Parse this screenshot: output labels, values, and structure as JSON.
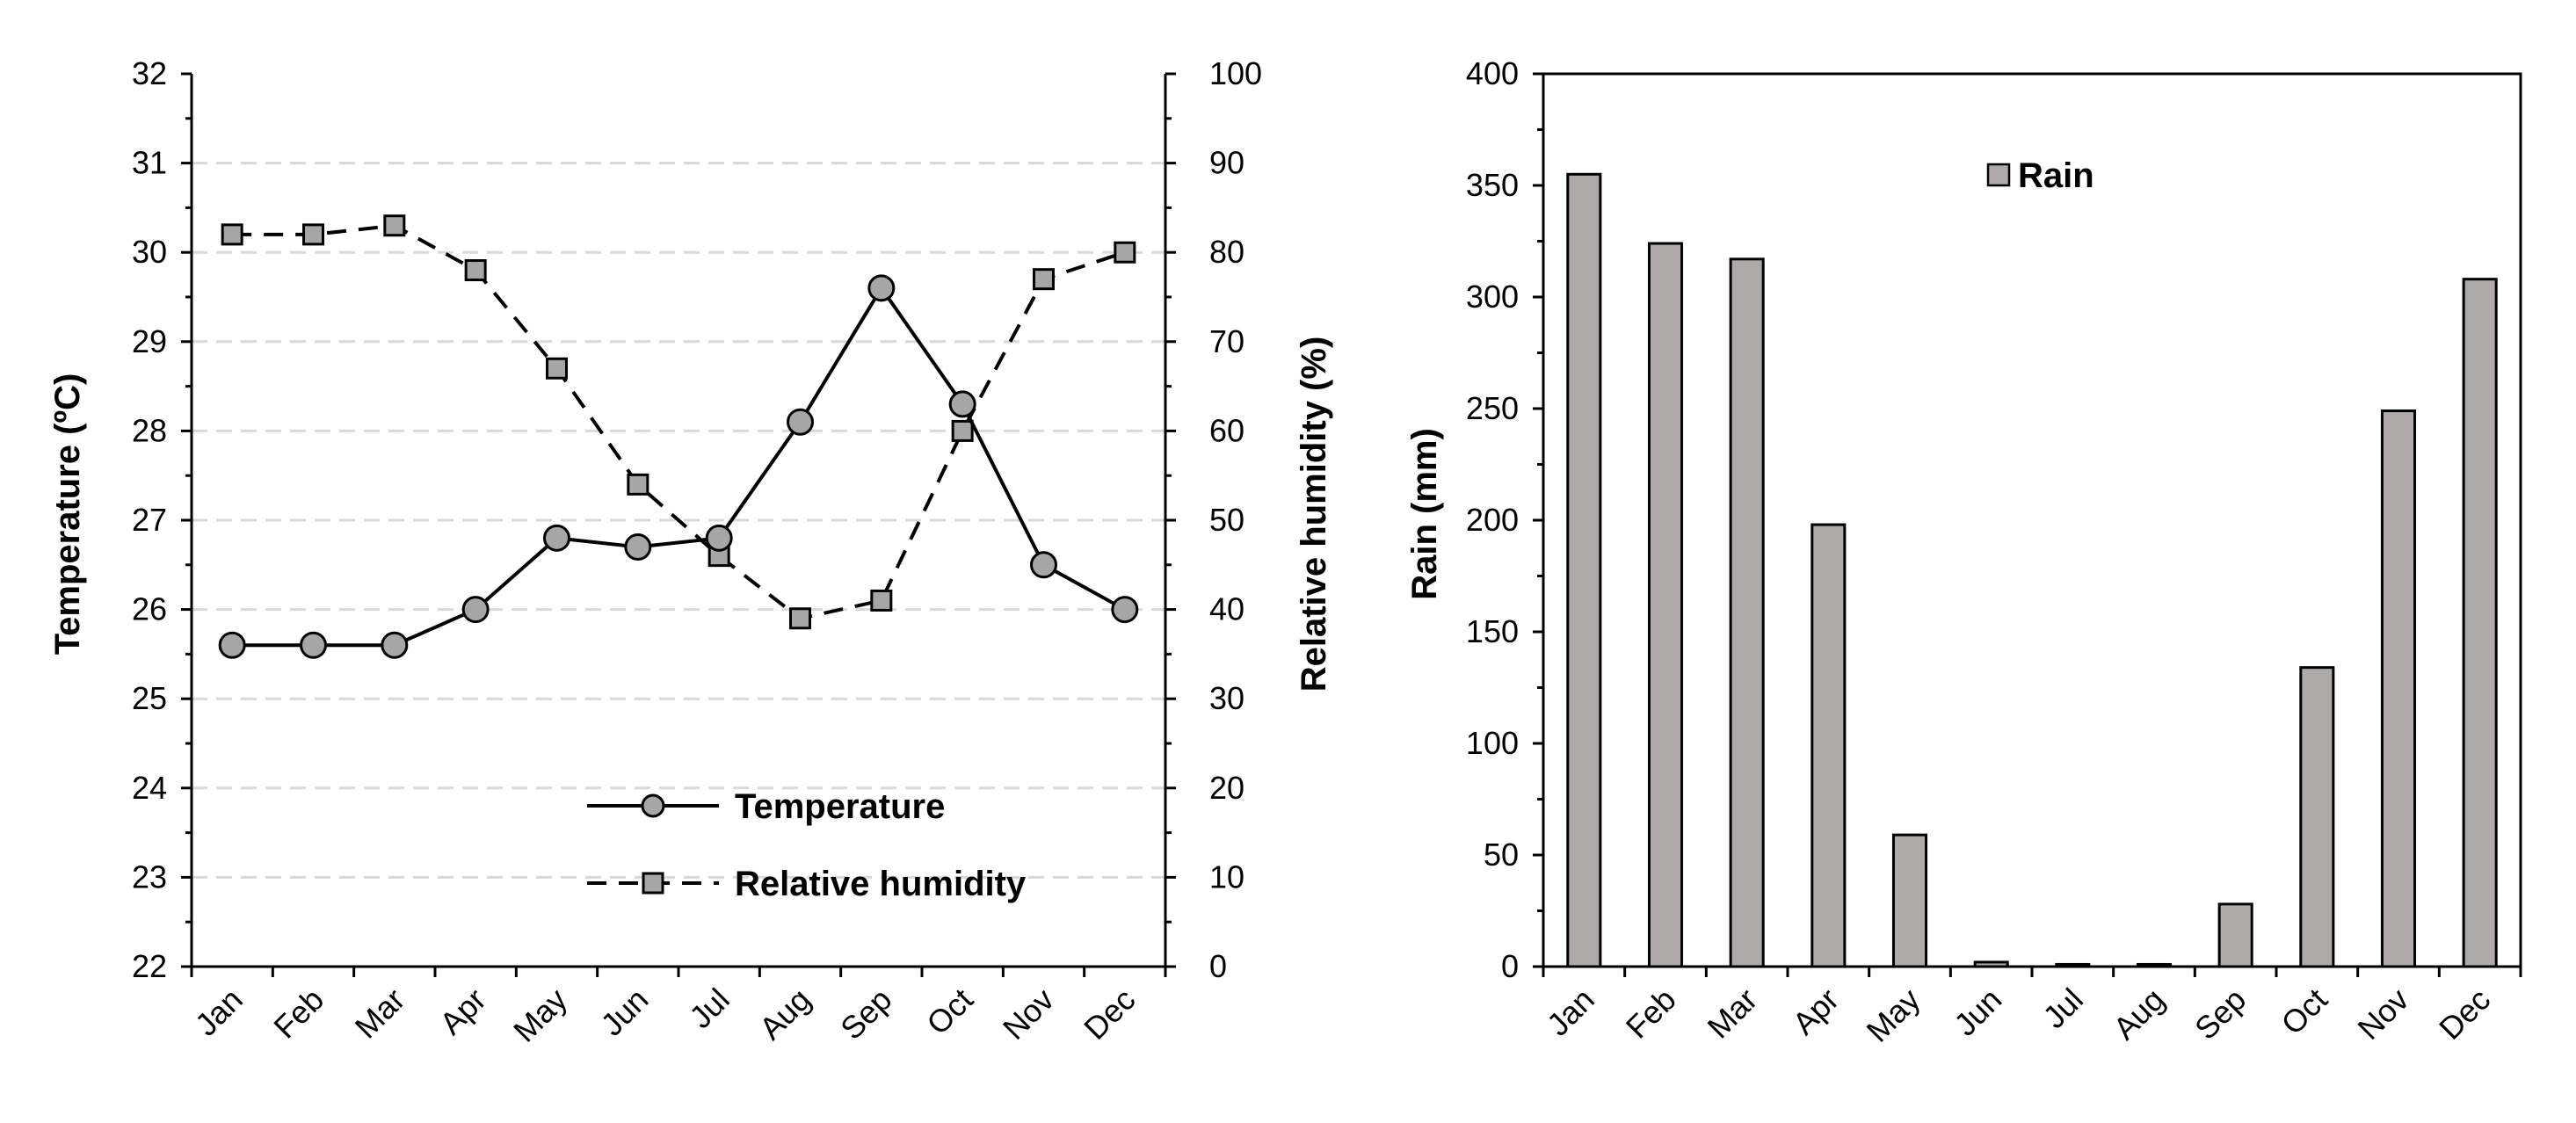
{
  "chart_data": [
    {
      "type": "line",
      "categories": [
        "Jan",
        "Feb",
        "Mar",
        "Apr",
        "May",
        "Jun",
        "Jul",
        "Aug",
        "Sep",
        "Oct",
        "Nov",
        "Dec"
      ],
      "series": [
        {
          "name": "Temperature",
          "axis": "left",
          "values": [
            25.6,
            25.6,
            25.6,
            26.0,
            26.8,
            26.7,
            26.8,
            28.1,
            29.6,
            28.3,
            26.5,
            26.0
          ],
          "style": "solid",
          "marker": "circle"
        },
        {
          "name": "Relative humidity",
          "axis": "right",
          "values": [
            82,
            82,
            83,
            78,
            67,
            54,
            46,
            39,
            41,
            60,
            77,
            80
          ],
          "style": "dashed",
          "marker": "square"
        }
      ],
      "ylabel": "Temperature (ºC)",
      "y2label": "Relative humidity (%)",
      "ylim": [
        22,
        32
      ],
      "y2lim": [
        0,
        100
      ],
      "yticks": [
        "22",
        "23",
        "24",
        "25",
        "26",
        "27",
        "28",
        "29",
        "30",
        "31",
        "32"
      ],
      "y2ticks": [
        "0",
        "10",
        "20",
        "30",
        "40",
        "50",
        "60",
        "70",
        "80",
        "90",
        "100"
      ],
      "grid": true,
      "legend": "bottom-right"
    },
    {
      "type": "bar",
      "categories": [
        "Jan",
        "Feb",
        "Mar",
        "Apr",
        "May",
        "Jun",
        "Jul",
        "Aug",
        "Sep",
        "Oct",
        "Nov",
        "Dec"
      ],
      "series": [
        {
          "name": "Rain",
          "values": [
            355,
            324,
            317,
            198,
            59,
            2,
            1,
            1,
            28,
            134,
            249,
            308
          ]
        }
      ],
      "ylabel": "Rain (mm)",
      "ylim": [
        0,
        400
      ],
      "yticks": [
        "0",
        "50",
        "100",
        "150",
        "200",
        "250",
        "300",
        "350",
        "400"
      ],
      "grid": false,
      "legend": "top-center"
    }
  ],
  "colors": {
    "marker_fill": "#a6a6a6",
    "bar_fill": "#aeaaaa",
    "line": "#000000",
    "grid": "#d9d9d9"
  }
}
